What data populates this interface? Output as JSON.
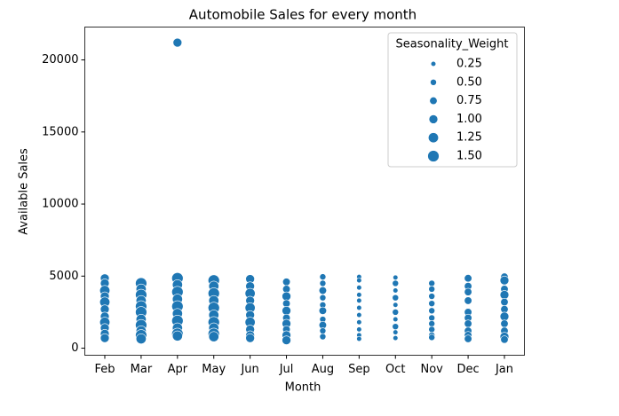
{
  "chart_data": {
    "type": "scatter",
    "title": "Automobile Sales for every month",
    "x_label": "Month",
    "y_label": "Available Sales",
    "categories": [
      "Feb",
      "Mar",
      "Apr",
      "May",
      "Jun",
      "Jul",
      "Aug",
      "Sep",
      "Oct",
      "Nov",
      "Dec",
      "Jan"
    ],
    "x": [
      "Feb",
      "Feb",
      "Feb",
      "Feb",
      "Feb",
      "Feb",
      "Feb",
      "Feb",
      "Feb",
      "Feb",
      "Feb",
      "Mar",
      "Mar",
      "Mar",
      "Mar",
      "Mar",
      "Mar",
      "Mar",
      "Mar",
      "Mar",
      "Mar",
      "Mar",
      "Apr",
      "Apr",
      "Apr",
      "Apr",
      "Apr",
      "Apr",
      "Apr",
      "Apr",
      "Apr",
      "Apr",
      "Apr",
      "May",
      "May",
      "May",
      "May",
      "May",
      "May",
      "May",
      "May",
      "May",
      "May",
      "Jun",
      "Jun",
      "Jun",
      "Jun",
      "Jun",
      "Jun",
      "Jun",
      "Jun",
      "Jun",
      "Jun",
      "Jul",
      "Jul",
      "Jul",
      "Jul",
      "Jul",
      "Jul",
      "Jul",
      "Jul",
      "Jul",
      "Jul",
      "Aug",
      "Aug",
      "Aug",
      "Aug",
      "Aug",
      "Aug",
      "Aug",
      "Aug",
      "Aug",
      "Aug",
      "Sep",
      "Sep",
      "Sep",
      "Sep",
      "Sep",
      "Sep",
      "Sep",
      "Sep",
      "Sep",
      "Sep",
      "Sep",
      "Oct",
      "Oct",
      "Oct",
      "Oct",
      "Oct",
      "Oct",
      "Oct",
      "Oct",
      "Oct",
      "Oct",
      "Nov",
      "Nov",
      "Nov",
      "Nov",
      "Nov",
      "Nov",
      "Nov",
      "Nov",
      "Nov",
      "Nov",
      "Dec",
      "Dec",
      "Dec",
      "Dec",
      "Dec",
      "Dec",
      "Dec",
      "Dec",
      "Dec",
      "Dec",
      "Jan",
      "Jan",
      "Jan",
      "Jan",
      "Jan",
      "Jan",
      "Jan",
      "Jan",
      "Jan",
      "Jan",
      "Jan"
    ],
    "y": [
      4850,
      4500,
      4000,
      3600,
      3200,
      2700,
      2200,
      1800,
      1400,
      1000,
      700,
      4500,
      4100,
      3700,
      3300,
      2900,
      2500,
      2000,
      1600,
      1200,
      900,
      650,
      21200,
      4850,
      4400,
      3900,
      3400,
      2900,
      2400,
      1900,
      1400,
      1000,
      850,
      4700,
      4300,
      3800,
      3300,
      2800,
      2300,
      1800,
      1400,
      1000,
      800,
      4800,
      4300,
      3800,
      3300,
      2800,
      2300,
      1800,
      1300,
      900,
      700,
      4600,
      4100,
      3600,
      3100,
      2600,
      2100,
      1700,
      1300,
      900,
      550,
      4950,
      4500,
      4000,
      3500,
      3000,
      2600,
      2000,
      1600,
      1200,
      800,
      4950,
      4700,
      4200,
      3700,
      3300,
      2800,
      2300,
      1800,
      1300,
      900,
      650,
      4900,
      4500,
      4000,
      3500,
      3000,
      2500,
      2000,
      1500,
      1100,
      700,
      4500,
      4100,
      3600,
      3100,
      2600,
      2100,
      1700,
      1300,
      900,
      750,
      4850,
      4300,
      3900,
      3300,
      2500,
      2100,
      1700,
      1200,
      900,
      650,
      4950,
      4700,
      4100,
      3700,
      3200,
      2700,
      2200,
      1700,
      1200,
      800,
      600
    ],
    "size": [
      1.0,
      1.0,
      1.25,
      1.0,
      1.25,
      1.0,
      1.0,
      1.25,
      1.0,
      1.0,
      1.0,
      1.5,
      1.25,
      1.5,
      1.25,
      1.5,
      1.5,
      1.25,
      1.5,
      1.25,
      1.5,
      1.25,
      1.0,
      1.5,
      1.25,
      1.5,
      1.25,
      1.5,
      1.25,
      1.5,
      1.25,
      1.5,
      1.25,
      1.5,
      1.25,
      1.5,
      1.25,
      1.5,
      1.25,
      1.5,
      1.25,
      1.5,
      1.25,
      1.0,
      1.0,
      1.25,
      1.0,
      1.25,
      1.0,
      1.25,
      1.0,
      1.0,
      1.0,
      0.75,
      0.75,
      1.0,
      0.75,
      1.0,
      0.75,
      1.0,
      0.75,
      1.0,
      1.0,
      0.5,
      0.5,
      0.75,
      0.5,
      0.5,
      0.75,
      0.5,
      0.75,
      0.5,
      0.5,
      0.25,
      0.25,
      0.25,
      0.25,
      0.25,
      0.25,
      0.25,
      0.25,
      0.25,
      0.25,
      0.25,
      0.25,
      0.5,
      0.25,
      0.5,
      0.25,
      0.5,
      0.25,
      0.5,
      0.25,
      0.25,
      0.5,
      0.5,
      0.5,
      0.5,
      0.5,
      0.5,
      0.5,
      0.5,
      0.5,
      0.5,
      0.75,
      0.75,
      0.75,
      0.75,
      0.75,
      0.75,
      0.75,
      0.75,
      0.75,
      0.75,
      0.75,
      1.0,
      0.75,
      1.0,
      0.75,
      0.75,
      1.0,
      0.75,
      0.75,
      1.0,
      0.75
    ],
    "color": "#1f77b4",
    "ylim": [
      -490,
      22280
    ],
    "yticks": [
      0,
      5000,
      10000,
      15000,
      20000
    ],
    "legend": {
      "title": "Seasonality_Weight",
      "sizes": [
        0.25,
        0.5,
        0.75,
        1.0,
        1.25,
        1.5
      ],
      "labels": [
        "0.25",
        "0.50",
        "0.75",
        "1.00",
        "1.25",
        "1.50"
      ],
      "position": "upper right"
    }
  }
}
